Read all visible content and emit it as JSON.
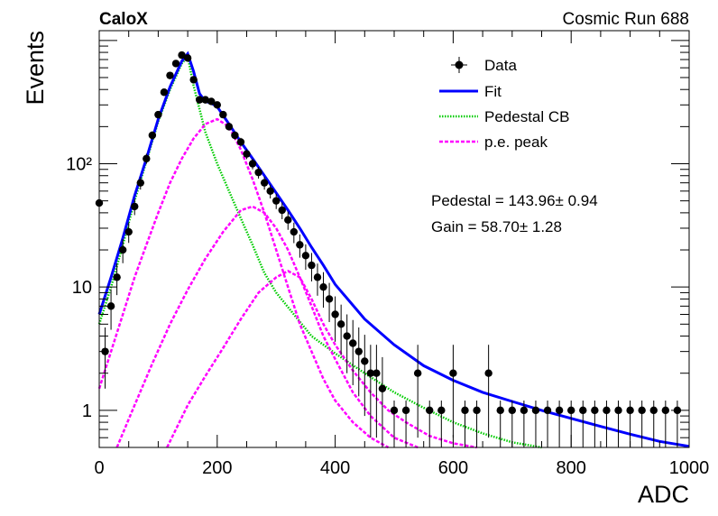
{
  "header": {
    "experiment": "CaloX",
    "run_label": "Cosmic Run 688"
  },
  "fit_results": {
    "pedestal_text": "Pedestal = 143.96± 0.94",
    "gain_text": "Gain = 58.70± 1.28"
  },
  "chart_data": {
    "type": "scatter",
    "title": "",
    "xlabel": "ADC",
    "ylabel": "Events",
    "xlim": [
      0,
      1000
    ],
    "ylim": [
      0.5,
      1200
    ],
    "y_scale": "log",
    "grid": false,
    "legend_position": "top-right",
    "x_ticks": [
      {
        "value": 0,
        "label": "0"
      },
      {
        "value": 200,
        "label": "200"
      },
      {
        "value": 400,
        "label": "400"
      },
      {
        "value": 600,
        "label": "600"
      },
      {
        "value": 800,
        "label": "800"
      },
      {
        "value": 1000,
        "label": "1000"
      }
    ],
    "y_ticks": [
      {
        "value": 1,
        "label": "1"
      },
      {
        "value": 10,
        "label": "10"
      },
      {
        "value": 100,
        "label": "10²"
      }
    ],
    "legend": [
      {
        "name": "Data",
        "style": "marker",
        "color": "#000000"
      },
      {
        "name": "Fit",
        "style": "solid",
        "color": "#0000ff"
      },
      {
        "name": "Pedestal CB",
        "style": "dotted",
        "color": "#00cc00"
      },
      {
        "name": "p.e. peak",
        "style": "dashed",
        "color": "#ff00ff"
      }
    ],
    "series": [
      {
        "name": "Data",
        "kind": "points",
        "color": "#000000",
        "x": [
          0,
          10,
          20,
          30,
          40,
          50,
          60,
          70,
          80,
          90,
          100,
          110,
          120,
          130,
          140,
          150,
          160,
          170,
          180,
          190,
          200,
          210,
          220,
          230,
          240,
          250,
          260,
          270,
          280,
          290,
          300,
          310,
          320,
          330,
          340,
          350,
          360,
          370,
          380,
          390,
          400,
          410,
          420,
          430,
          440,
          450,
          460,
          470,
          480,
          500,
          520,
          540,
          560,
          580,
          600,
          620,
          640,
          660,
          680,
          700,
          720,
          740,
          760,
          780,
          800,
          820,
          840,
          860,
          880,
          900,
          920,
          940,
          960,
          980
        ],
        "y": [
          48,
          3,
          7,
          12,
          20,
          28,
          45,
          70,
          110,
          170,
          250,
          380,
          520,
          650,
          760,
          720,
          480,
          330,
          330,
          320,
          300,
          250,
          200,
          170,
          150,
          120,
          100,
          85,
          70,
          60,
          50,
          42,
          35,
          28,
          22,
          18,
          15,
          12,
          10,
          8,
          6,
          5,
          4,
          3.5,
          3,
          2.5,
          2,
          2,
          1.5,
          1,
          1,
          2,
          1,
          1,
          2,
          1,
          1,
          2,
          1,
          1,
          1,
          1,
          1,
          1,
          1,
          1,
          1,
          1,
          1,
          1,
          1,
          1,
          1,
          1
        ],
        "err_low": [
          7,
          1.5,
          2.5,
          3.4,
          4.4,
          5.2,
          6.7,
          8.3,
          10.4,
          13,
          15.8,
          19.5,
          22.8,
          25.5,
          27.5,
          26.8,
          21.9,
          18.2,
          18.2,
          17.9,
          17.3,
          15.8,
          14.1,
          13,
          12.2,
          11,
          10,
          9.2,
          8.4,
          7.7,
          7.1,
          6.5,
          5.9,
          5.3,
          4.7,
          4.2,
          3.9,
          3.5,
          3.2,
          2.8,
          2.4,
          2.2,
          2,
          1.9,
          1.7,
          1.6,
          1.4,
          1.4,
          1.2,
          0.5,
          0.5,
          1.4,
          0.5,
          0.5,
          1.4,
          0.5,
          0.5,
          1.4,
          0.5,
          0.5,
          0.5,
          0.5,
          0.5,
          0.5,
          0.5,
          0.5,
          0.5,
          0.5,
          0.5,
          0.5,
          0.5,
          0.5,
          0.5,
          0.5
        ],
        "err_high": [
          7,
          1.7,
          2.6,
          3.5,
          4.5,
          5.3,
          6.7,
          8.4,
          10.5,
          13,
          15.8,
          19.5,
          22.8,
          25.5,
          27.6,
          26.8,
          21.9,
          18.2,
          18.2,
          17.9,
          17.3,
          15.8,
          14.1,
          13,
          12.2,
          11,
          10,
          9.2,
          8.4,
          7.7,
          7.1,
          6.5,
          5.9,
          5.3,
          4.7,
          4.2,
          3.9,
          3.5,
          3.2,
          2.8,
          2.4,
          2.2,
          2,
          1.9,
          1.7,
          1.6,
          1.4,
          1.4,
          1.2,
          0.2,
          0.2,
          1.4,
          0.2,
          0.2,
          1.4,
          0.2,
          0.2,
          1.4,
          0.2,
          0.2,
          0.2,
          0.2,
          0.2,
          0.2,
          0.2,
          0.2,
          0.2,
          0.2,
          0.2,
          0.2,
          0.2,
          0.2,
          0.2,
          0.2
        ]
      },
      {
        "name": "Fit",
        "kind": "line",
        "color": "#0000ff",
        "x": [
          0,
          20,
          40,
          60,
          80,
          100,
          120,
          140,
          150,
          160,
          170,
          180,
          190,
          200,
          220,
          240,
          260,
          280,
          300,
          320,
          340,
          360,
          380,
          400,
          450,
          500,
          550,
          600,
          650,
          700,
          750,
          800,
          850,
          900,
          950,
          1000
        ],
        "y": [
          6,
          12,
          25,
          55,
          110,
          230,
          420,
          680,
          780,
          560,
          370,
          320,
          310,
          290,
          210,
          150,
          110,
          80,
          58,
          42,
          30,
          21,
          15,
          10.5,
          5.5,
          3.4,
          2.3,
          1.75,
          1.4,
          1.18,
          1.0,
          0.86,
          0.74,
          0.64,
          0.56,
          0.51
        ]
      },
      {
        "name": "Pedestal CB",
        "kind": "line",
        "color": "#00cc00",
        "x": [
          0,
          20,
          40,
          60,
          80,
          100,
          120,
          140,
          150,
          160,
          180,
          200,
          220,
          240,
          260,
          280,
          300,
          330,
          360,
          400,
          450,
          500,
          550,
          600,
          650,
          700,
          750
        ],
        "y": [
          5,
          10,
          22,
          50,
          105,
          220,
          400,
          650,
          740,
          430,
          180,
          100,
          60,
          36,
          22,
          13,
          9,
          6,
          4,
          2.9,
          2,
          1.4,
          1.05,
          0.8,
          0.65,
          0.55,
          0.5
        ]
      },
      {
        "name": "p.e. peak",
        "kind": "line",
        "color": "#ff00ff",
        "x": [
          0,
          20,
          40,
          60,
          80,
          100,
          120,
          140,
          160,
          180,
          200,
          220,
          240,
          260,
          280,
          300,
          320,
          340,
          360,
          380,
          400,
          430,
          460,
          490
        ],
        "y": [
          1.5,
          3,
          6,
          12,
          22,
          40,
          70,
          110,
          160,
          210,
          230,
          200,
          130,
          75,
          40,
          20,
          10,
          5,
          3,
          1.8,
          1.2,
          0.8,
          0.6,
          0.5
        ]
      },
      {
        "name": "p.e. peak",
        "kind": "line",
        "color": "#ff00ff",
        "x": [
          30,
          60,
          90,
          120,
          150,
          180,
          210,
          240,
          260,
          280,
          300,
          320,
          340,
          360,
          380,
          400,
          430,
          460,
          500,
          540
        ],
        "y": [
          0.5,
          1.1,
          2.4,
          5,
          9.5,
          17,
          28,
          42,
          45,
          40,
          30,
          20,
          12,
          7,
          4,
          2.6,
          1.4,
          0.9,
          0.6,
          0.5
        ]
      },
      {
        "name": "p.e. peak",
        "kind": "line",
        "color": "#ff00ff",
        "x": [
          115,
          150,
          180,
          210,
          240,
          270,
          300,
          320,
          340,
          360,
          380,
          400,
          430,
          460,
          490,
          520,
          560,
          600,
          640
        ],
        "y": [
          0.5,
          1.1,
          1.9,
          3.2,
          5.5,
          9,
          12,
          13.5,
          12,
          8,
          5,
          3.4,
          2.1,
          1.4,
          1,
          0.8,
          0.62,
          0.54,
          0.5
        ]
      }
    ]
  }
}
